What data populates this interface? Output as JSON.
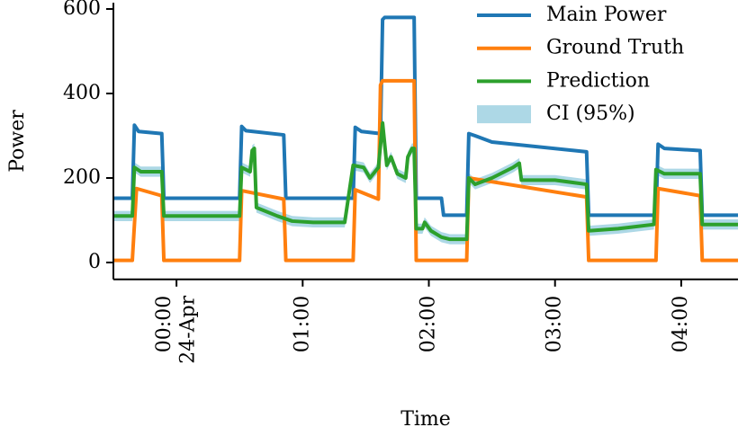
{
  "chart_data": {
    "type": "line",
    "x_label": "Time",
    "y_label": "Power",
    "xlim": [
      -30,
      267
    ],
    "ylim": [
      -40,
      615
    ],
    "xticks": [
      {
        "value": 0,
        "label": "00:00\n24-Apr"
      },
      {
        "value": 60,
        "label": "01:00"
      },
      {
        "value": 120,
        "label": "02:00"
      },
      {
        "value": 180,
        "label": "03:00"
      },
      {
        "value": 240,
        "label": "04:00"
      }
    ],
    "yticks": [
      0,
      200,
      400,
      600
    ],
    "legend": "upper right",
    "series": [
      {
        "name": "Main Power",
        "color": "#1f77b4",
        "x": [
          -30,
          -21,
          -20,
          -18,
          -7,
          -6,
          30,
          31,
          33,
          51,
          52,
          84,
          85,
          88,
          97,
          98,
          99,
          113,
          114,
          126,
          127,
          138,
          139,
          142,
          150,
          195,
          196,
          228,
          229,
          232,
          249,
          250,
          267
        ],
        "values": [
          152,
          152,
          325,
          310,
          305,
          152,
          152,
          322,
          312,
          302,
          152,
          152,
          320,
          310,
          305,
          575,
          580,
          580,
          152,
          152,
          112,
          112,
          305,
          300,
          285,
          262,
          112,
          112,
          280,
          270,
          265,
          112,
          112
        ]
      },
      {
        "name": "Ground Truth",
        "color": "#ff7f0e",
        "x": [
          -30,
          -21,
          -19,
          -7,
          -6,
          30,
          31,
          51,
          52,
          84,
          85,
          96,
          97,
          98,
          113,
          114,
          138,
          139,
          195,
          196,
          228,
          229,
          249,
          250,
          267
        ],
        "values": [
          5,
          5,
          175,
          158,
          5,
          5,
          170,
          150,
          5,
          5,
          172,
          150,
          420,
          430,
          430,
          5,
          5,
          200,
          155,
          5,
          5,
          175,
          158,
          5,
          5
        ]
      },
      {
        "name": "Prediction",
        "color": "#2ca02c",
        "x": [
          -30,
          -21,
          -20,
          -17,
          -7,
          -6,
          30,
          31,
          35,
          36,
          37,
          38,
          48,
          55,
          65,
          80,
          84,
          89,
          92,
          96,
          98,
          100,
          102,
          105,
          109,
          110,
          112,
          113,
          114,
          117,
          118,
          121,
          126,
          130,
          138,
          139,
          142,
          150,
          160,
          163,
          164,
          180,
          195,
          196,
          210,
          227,
          228,
          232,
          249,
          250,
          267
        ],
        "values": [
          110,
          110,
          225,
          215,
          215,
          110,
          110,
          225,
          215,
          265,
          270,
          130,
          110,
          98,
          95,
          95,
          230,
          225,
          200,
          225,
          330,
          230,
          250,
          210,
          200,
          250,
          270,
          270,
          80,
          80,
          95,
          75,
          60,
          55,
          55,
          200,
          185,
          200,
          225,
          235,
          195,
          195,
          185,
          75,
          80,
          90,
          220,
          210,
          210,
          90,
          90
        ],
        "ci": {
          "name": "CI (95%)",
          "color": "#add8e6",
          "lower": [
            98,
            98,
            213,
            203,
            203,
            98,
            98,
            213,
            203,
            253,
            258,
            118,
            98,
            86,
            83,
            83,
            218,
            213,
            188,
            213,
            318,
            218,
            238,
            198,
            188,
            238,
            258,
            258,
            68,
            68,
            83,
            63,
            48,
            43,
            43,
            188,
            173,
            188,
            213,
            223,
            183,
            183,
            173,
            63,
            68,
            78,
            208,
            198,
            198,
            78,
            78
          ],
          "upper": [
            122,
            122,
            237,
            227,
            227,
            122,
            122,
            237,
            227,
            277,
            282,
            142,
            122,
            110,
            107,
            107,
            242,
            237,
            212,
            237,
            342,
            242,
            262,
            222,
            212,
            262,
            282,
            282,
            92,
            92,
            107,
            87,
            72,
            67,
            67,
            212,
            197,
            212,
            237,
            247,
            207,
            207,
            197,
            87,
            92,
            102,
            232,
            222,
            222,
            102,
            102
          ]
        }
      }
    ]
  }
}
